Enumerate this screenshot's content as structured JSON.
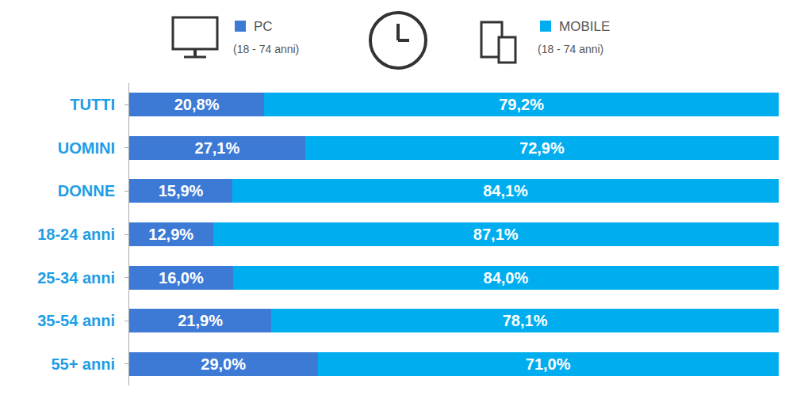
{
  "chart_data": {
    "type": "bar",
    "orientation": "horizontal",
    "stacked": true,
    "data_labels": true,
    "tick_labels": "y",
    "legend": "top",
    "categories": [
      "TUTTI",
      "UOMINI",
      "DONNE",
      "18-24 anni",
      "25-34 anni",
      "35-54 anni",
      "55+ anni"
    ],
    "xlim": [
      0,
      100
    ],
    "series": [
      {
        "name": "PC",
        "color": "#3c7ad6",
        "values": [
          20.8,
          27.1,
          15.9,
          12.9,
          16.0,
          21.9,
          29.0
        ],
        "value_labels": [
          "20,8%",
          "27,1%",
          "15,9%",
          "12,9%",
          "16,0%",
          "21,9%",
          "29,0%"
        ]
      },
      {
        "name": "MOBILE",
        "color": "#00aeef",
        "values": [
          79.2,
          72.9,
          84.1,
          87.1,
          84.0,
          78.1,
          71.0
        ],
        "value_labels": [
          "79,2%",
          "72,9%",
          "84,1%",
          "87,1%",
          "84,0%",
          "78,1%",
          "71,0%"
        ]
      }
    ],
    "annotations": [
      "(18 - 74 anni)",
      "(18 - 74 anni)"
    ]
  }
}
